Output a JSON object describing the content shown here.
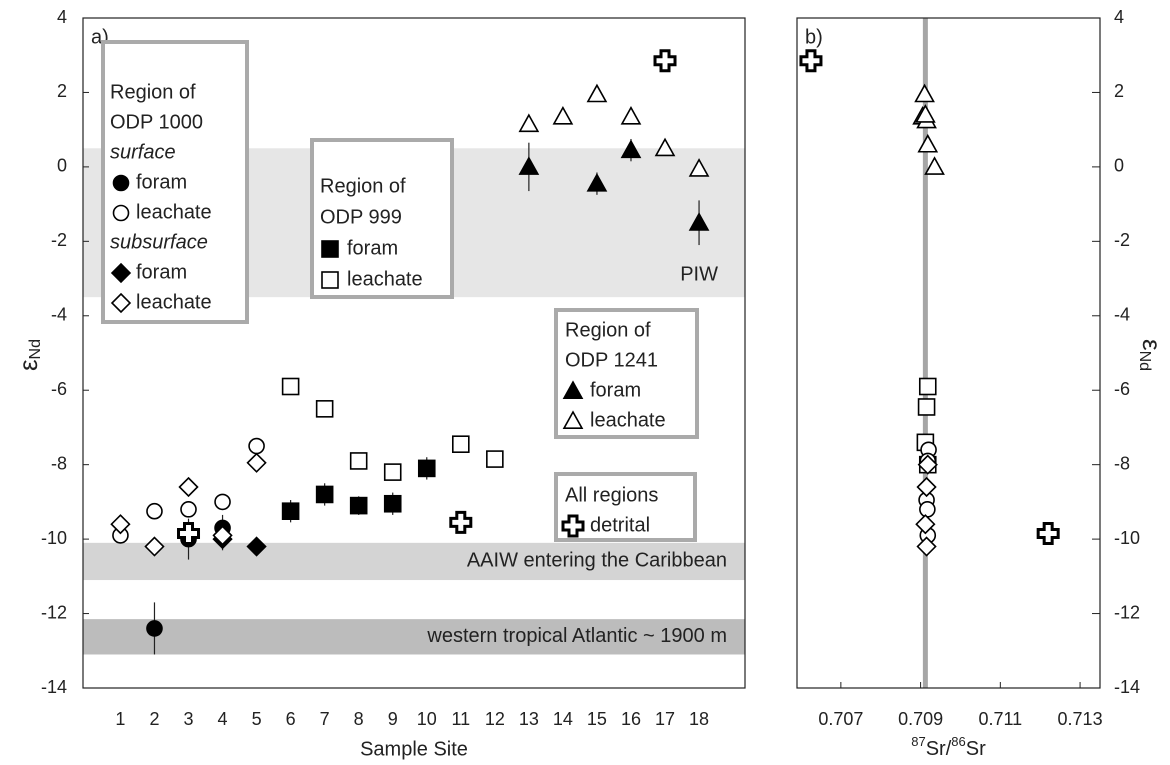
{
  "chart_data": [
    {
      "type": "scatter",
      "panel_label": "a)",
      "ylabel": "ε",
      "ylabel_sub": "Nd",
      "xlabel": "Sample Site",
      "xlim": [
        -0.1,
        19.35
      ],
      "xticks": [
        1,
        2,
        3,
        4,
        5,
        6,
        7,
        8,
        9,
        10,
        11,
        12,
        13,
        14,
        15,
        16,
        17,
        18
      ],
      "ylim": [
        -14,
        4
      ],
      "yticks": [
        -14,
        -12,
        -10,
        -8,
        -6,
        -4,
        -2,
        0,
        2,
        4
      ],
      "bands": [
        {
          "label": "PIW",
          "from": 0.5,
          "to": -3.5,
          "color": "#e6e6e6"
        },
        {
          "label": "AAIW entering the Caribbean",
          "from": -10.1,
          "to": -11.1,
          "color": "#d4d4d4"
        },
        {
          "label": "western tropical Atlantic ~ 1900 m",
          "from": -12.15,
          "to": -13.1,
          "color": "#bcbcbc"
        }
      ],
      "groups": [
        {
          "title": [
            "Region of",
            "ODP 1000"
          ],
          "sections": [
            {
              "label": "surface",
              "series": [
                {
                  "name": "foram",
                  "marker": "circle",
                  "filled": true,
                  "x": [
                    2,
                    3,
                    4
                  ],
                  "values": [
                    -12.4,
                    -10.0,
                    -9.7
                  ],
                  "errors": [
                    0.7,
                    0.55,
                    0.35
                  ]
                },
                {
                  "name": "leachate",
                  "marker": "circle",
                  "filled": false,
                  "x": [
                    1,
                    2,
                    3,
                    4,
                    5
                  ],
                  "values": [
                    -9.9,
                    -9.25,
                    -9.2,
                    -9.0,
                    -7.5
                  ]
                }
              ]
            },
            {
              "label": "subsurface",
              "series": [
                {
                  "name": "foram",
                  "marker": "diamond",
                  "filled": true,
                  "x": [
                    4,
                    5
                  ],
                  "values": [
                    -10.0,
                    -10.2
                  ],
                  "errors": [
                    0.3,
                    0.15
                  ]
                },
                {
                  "name": "leachate",
                  "marker": "diamond",
                  "filled": false,
                  "x": [
                    1,
                    2,
                    3,
                    4,
                    5
                  ],
                  "values": [
                    -9.6,
                    -10.2,
                    -8.6,
                    -9.9,
                    -7.95
                  ]
                }
              ]
            }
          ]
        },
        {
          "title": [
            "Region of",
            "ODP 999"
          ],
          "sections": [
            {
              "series": [
                {
                  "name": "foram",
                  "marker": "square",
                  "filled": true,
                  "x": [
                    6,
                    7,
                    8,
                    9,
                    10
                  ],
                  "values": [
                    -9.25,
                    -8.8,
                    -9.1,
                    -9.05,
                    -8.1
                  ],
                  "errors": [
                    0.3,
                    0.3,
                    0.25,
                    0.3,
                    0.3
                  ]
                },
                {
                  "name": "leachate",
                  "marker": "square",
                  "filled": false,
                  "x": [
                    6,
                    7,
                    8,
                    9,
                    11,
                    12
                  ],
                  "values": [
                    -5.9,
                    -6.5,
                    -7.9,
                    -8.2,
                    -7.45,
                    -7.85
                  ]
                }
              ]
            }
          ]
        },
        {
          "title": [
            "Region of",
            "ODP 1241"
          ],
          "sections": [
            {
              "series": [
                {
                  "name": "foram",
                  "marker": "triangle",
                  "filled": true,
                  "x": [
                    13,
                    15,
                    16,
                    18
                  ],
                  "values": [
                    0.0,
                    -0.45,
                    0.45,
                    -1.5
                  ],
                  "errors": [
                    0.65,
                    0.3,
                    0.3,
                    0.6
                  ]
                },
                {
                  "name": "leachate",
                  "marker": "triangle",
                  "filled": false,
                  "x": [
                    13,
                    14,
                    15,
                    16,
                    17,
                    18
                  ],
                  "values": [
                    1.15,
                    1.35,
                    1.95,
                    1.35,
                    0.5,
                    -0.05
                  ]
                }
              ]
            }
          ]
        },
        {
          "title": [
            "All regions"
          ],
          "sections": [
            {
              "series": [
                {
                  "name": "detrital",
                  "marker": "cross",
                  "filled": false,
                  "x": [
                    3,
                    11,
                    17
                  ],
                  "values": [
                    -9.85,
                    -9.55,
                    2.85
                  ]
                }
              ]
            }
          ]
        }
      ]
    },
    {
      "type": "scatter",
      "panel_label": "b)",
      "ylabel": "ε",
      "ylabel_sub": "Nd",
      "xlabel_parts": [
        {
          "text": "87",
          "sup": true
        },
        {
          "text": "Sr/",
          "sup": false
        },
        {
          "text": "86",
          "sup": true
        },
        {
          "text": "Sr",
          "sup": false
        }
      ],
      "xlim": [
        0.7059,
        0.7135
      ],
      "xticks": [
        0.707,
        0.709,
        0.711,
        0.713
      ],
      "ylim": [
        -14,
        4
      ],
      "yticks": [
        -14,
        -12,
        -10,
        -8,
        -6,
        -4,
        -2,
        0,
        2,
        4
      ],
      "reference_line": {
        "x": 0.70912,
        "color": "#a6a6a6"
      },
      "groups": [
        {
          "sections": [
            {
              "series": [
                {
                  "marker": "triangle",
                  "filled": false,
                  "x": [
                    0.7091,
                    0.70905,
                    0.70915,
                    0.70912,
                    0.70918,
                    0.70935
                  ],
                  "values": [
                    1.95,
                    1.35,
                    1.25,
                    1.4,
                    0.6,
                    0.0
                  ]
                },
                {
                  "marker": "square",
                  "filled": false,
                  "x": [
                    0.70918,
                    0.70915,
                    0.70912,
                    0.70918
                  ],
                  "values": [
                    -5.9,
                    -6.45,
                    -7.4,
                    -8.0
                  ]
                },
                {
                  "marker": "circle",
                  "filled": false,
                  "x": [
                    0.7092,
                    0.70918,
                    0.70915,
                    0.70917,
                    0.70918
                  ],
                  "values": [
                    -7.6,
                    -7.9,
                    -8.95,
                    -9.2,
                    -9.9
                  ]
                },
                {
                  "marker": "diamond",
                  "filled": false,
                  "x": [
                    0.70918,
                    0.70915,
                    0.70912,
                    0.70915
                  ],
                  "values": [
                    -8.0,
                    -8.6,
                    -9.6,
                    -10.2
                  ]
                },
                {
                  "marker": "cross",
                  "filled": false,
                  "x": [
                    0.70625,
                    0.7122
                  ],
                  "values": [
                    2.85,
                    -9.85
                  ]
                }
              ]
            }
          ]
        }
      ]
    }
  ]
}
